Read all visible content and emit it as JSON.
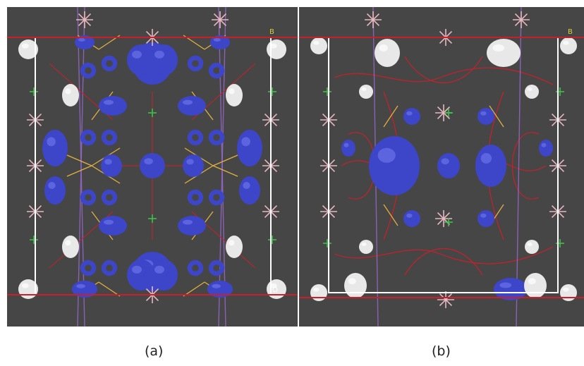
{
  "panels": [
    {
      "id": "a",
      "caption": "(a)",
      "axis_label": "B",
      "origin_label": "O"
    },
    {
      "id": "b",
      "caption": "(b)",
      "axis_label": "B",
      "origin_label": ""
    }
  ],
  "colors": {
    "background": "#464646",
    "isosurface_positive": "#3d45c8",
    "isosurface_negative": "#e8e8e8",
    "bond_yellow": "#e0b040",
    "bond_pink": "#e8b8c0",
    "contour_red": "#c8202a",
    "axis_violet": "#9a6ad0",
    "unit_cell": "#ffffff"
  }
}
